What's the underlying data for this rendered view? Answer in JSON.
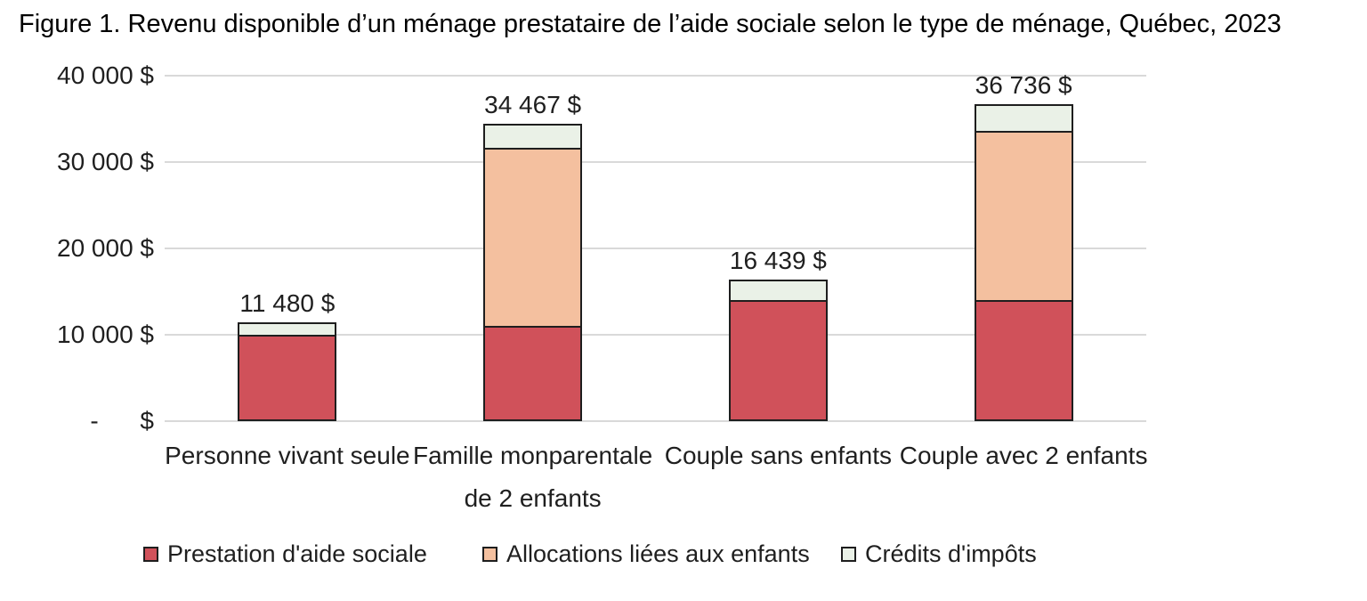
{
  "figure": {
    "title": "Figure 1. Revenu disponible d’un ménage prestataire de l’aide sociale selon le type de ménage, Québec, 2023"
  },
  "chart_data": {
    "type": "bar",
    "stacked": true,
    "title": "Figure 1. Revenu disponible d’un ménage prestataire de l’aide sociale selon le type de ménage, Québec, 2023",
    "categories": [
      "Personne vivant seule",
      "Famille monparentale\nde 2 enfants",
      "Couple sans enfants",
      "Couple avec 2 enfants"
    ],
    "series": [
      {
        "name": "Prestation d'aide sociale",
        "color": "#D0515A",
        "values": [
          10000,
          11080,
          14000,
          14000
        ]
      },
      {
        "name": "Allocations liées aux enfants",
        "color": "#F4C09F",
        "values": [
          0,
          20600,
          0,
          19610
        ]
      },
      {
        "name": "Crédits d'impôts",
        "color": "#EAF1E7",
        "values": [
          1480,
          2787,
          2439,
          3126
        ]
      }
    ],
    "totals": [
      11480,
      34467,
      16439,
      36736
    ],
    "total_labels": [
      "11 480 $",
      "34 467 $",
      "16 439 $",
      "36 736 $"
    ],
    "y_axis": {
      "min": 0,
      "max": 40000,
      "ticks": [
        {
          "value": 40000,
          "label": "40 000 $"
        },
        {
          "value": 30000,
          "label": "30 000 $"
        },
        {
          "value": 20000,
          "label": "20 000 $"
        },
        {
          "value": 10000,
          "label": "10 000 $"
        },
        {
          "value": 0,
          "label": "-      $"
        }
      ]
    },
    "grid": true,
    "legend_position": "bottom",
    "colors": {
      "bar_border": "#1E1E1E",
      "gridline": "#D9D9D9",
      "text": "#1F1F1F",
      "background": "#FFFFFF"
    }
  }
}
